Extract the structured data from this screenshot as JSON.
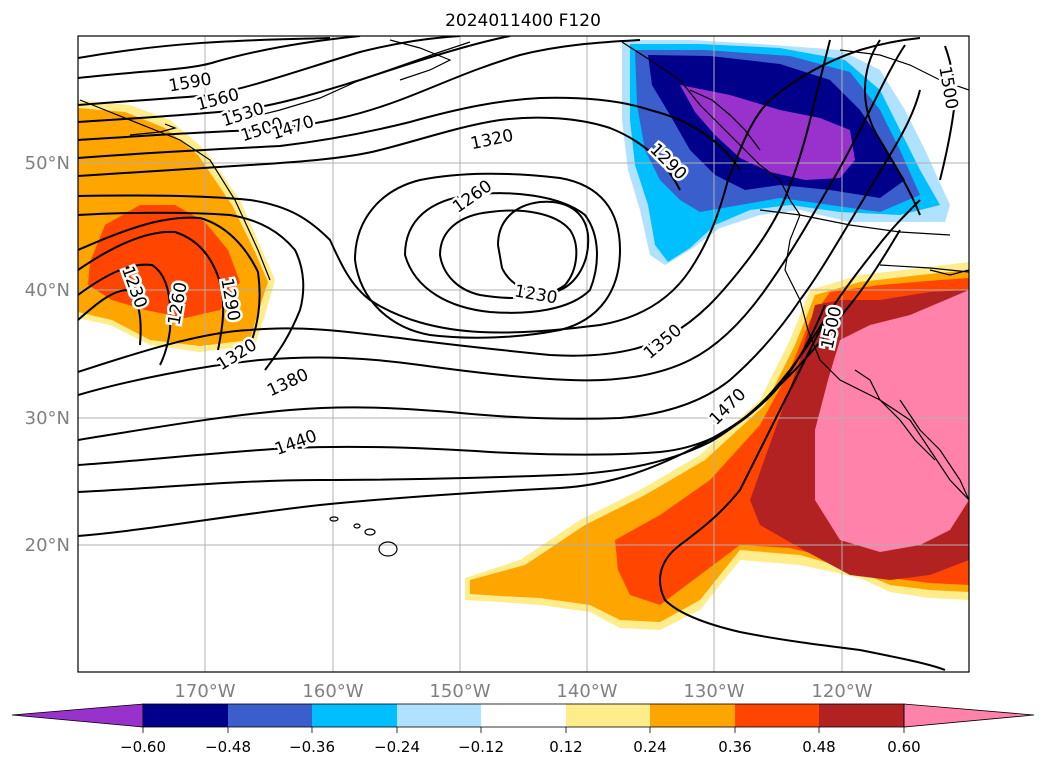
{
  "title": "2024011400 F120",
  "map": {
    "lat_ticks": [
      "50°N",
      "40°N",
      "30°N",
      "20°N"
    ],
    "lon_ticks": [
      "170°W",
      "160°W",
      "150°W",
      "140°W",
      "130°W",
      "120°W"
    ],
    "contour_labels": [
      "1590",
      "1560",
      "1530",
      "1500",
      "1470",
      "1320",
      "1260",
      "1230",
      "1230",
      "1260",
      "1290",
      "1320",
      "1380",
      "1440",
      "1290",
      "1350",
      "1470",
      "1500",
      "1500"
    ]
  },
  "colorbar": {
    "ticks": [
      "−0.60",
      "−0.48",
      "−0.36",
      "−0.24",
      "−0.12",
      "0.12",
      "0.24",
      "0.36",
      "0.48",
      "0.60"
    ],
    "colors": [
      "#9932cc",
      "#00008b",
      "#3a5fcd",
      "#00bfff",
      "#b0e2ff",
      "#ffffff",
      "#ffec8b",
      "#ffa500",
      "#ff4500",
      "#b22222",
      "#ff82ab"
    ]
  }
}
